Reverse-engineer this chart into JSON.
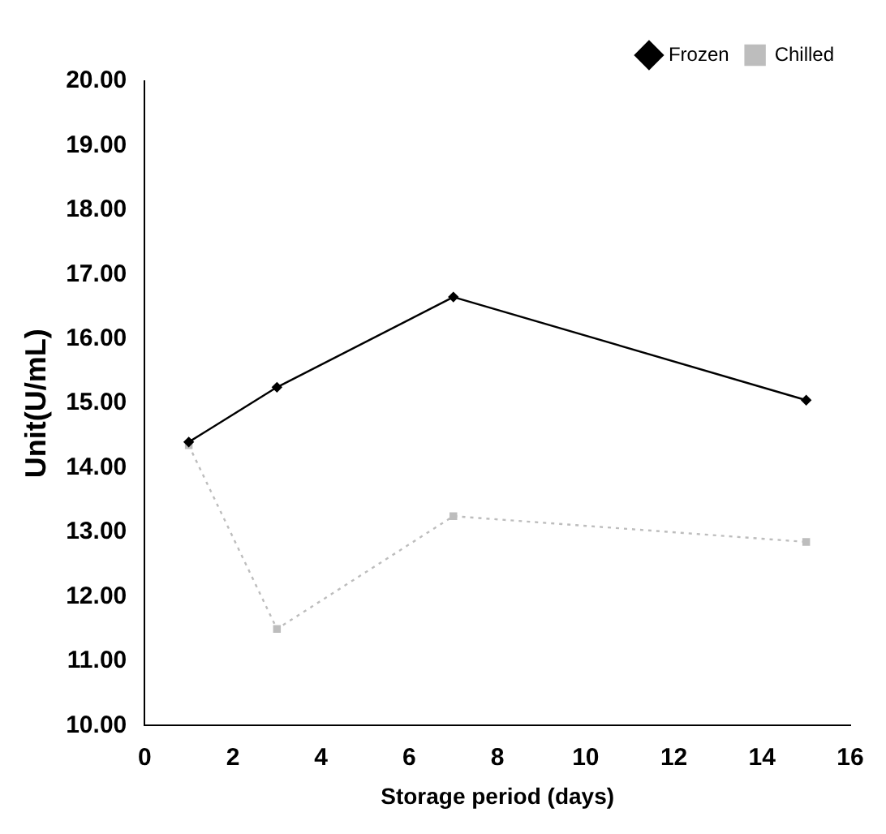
{
  "chart_data": {
    "type": "line",
    "xlabel": "Storage period (days)",
    "ylabel": "Unit(U/mL)",
    "x": [
      1,
      3,
      7,
      15
    ],
    "series": [
      {
        "name": "Frozen",
        "color": "#000000",
        "marker": "diamond",
        "line_style": "solid",
        "values": [
          14.4,
          15.25,
          16.65,
          15.05
        ]
      },
      {
        "name": "Chilled",
        "color": "#bdbdbd",
        "marker": "square",
        "line_style": "dotted",
        "values": [
          14.35,
          11.5,
          13.25,
          12.85
        ]
      }
    ],
    "xlim": [
      0,
      16
    ],
    "xticks": [
      0,
      2,
      4,
      6,
      8,
      10,
      12,
      14,
      16
    ],
    "ylim": [
      10,
      20
    ],
    "yticks": [
      {
        "value": 10,
        "label": "10.00"
      },
      {
        "value": 11,
        "label": "11.00"
      },
      {
        "value": 12,
        "label": "12.00"
      },
      {
        "value": 13,
        "label": "13.00"
      },
      {
        "value": 14,
        "label": "14.00"
      },
      {
        "value": 15,
        "label": "15.00"
      },
      {
        "value": 16,
        "label": "16.00"
      },
      {
        "value": 17,
        "label": "17.00"
      },
      {
        "value": 18,
        "label": "18.00"
      },
      {
        "value": 19,
        "label": "19.00"
      },
      {
        "value": 20,
        "label": "20.00"
      }
    ],
    "grid": false,
    "legend": "top right"
  }
}
